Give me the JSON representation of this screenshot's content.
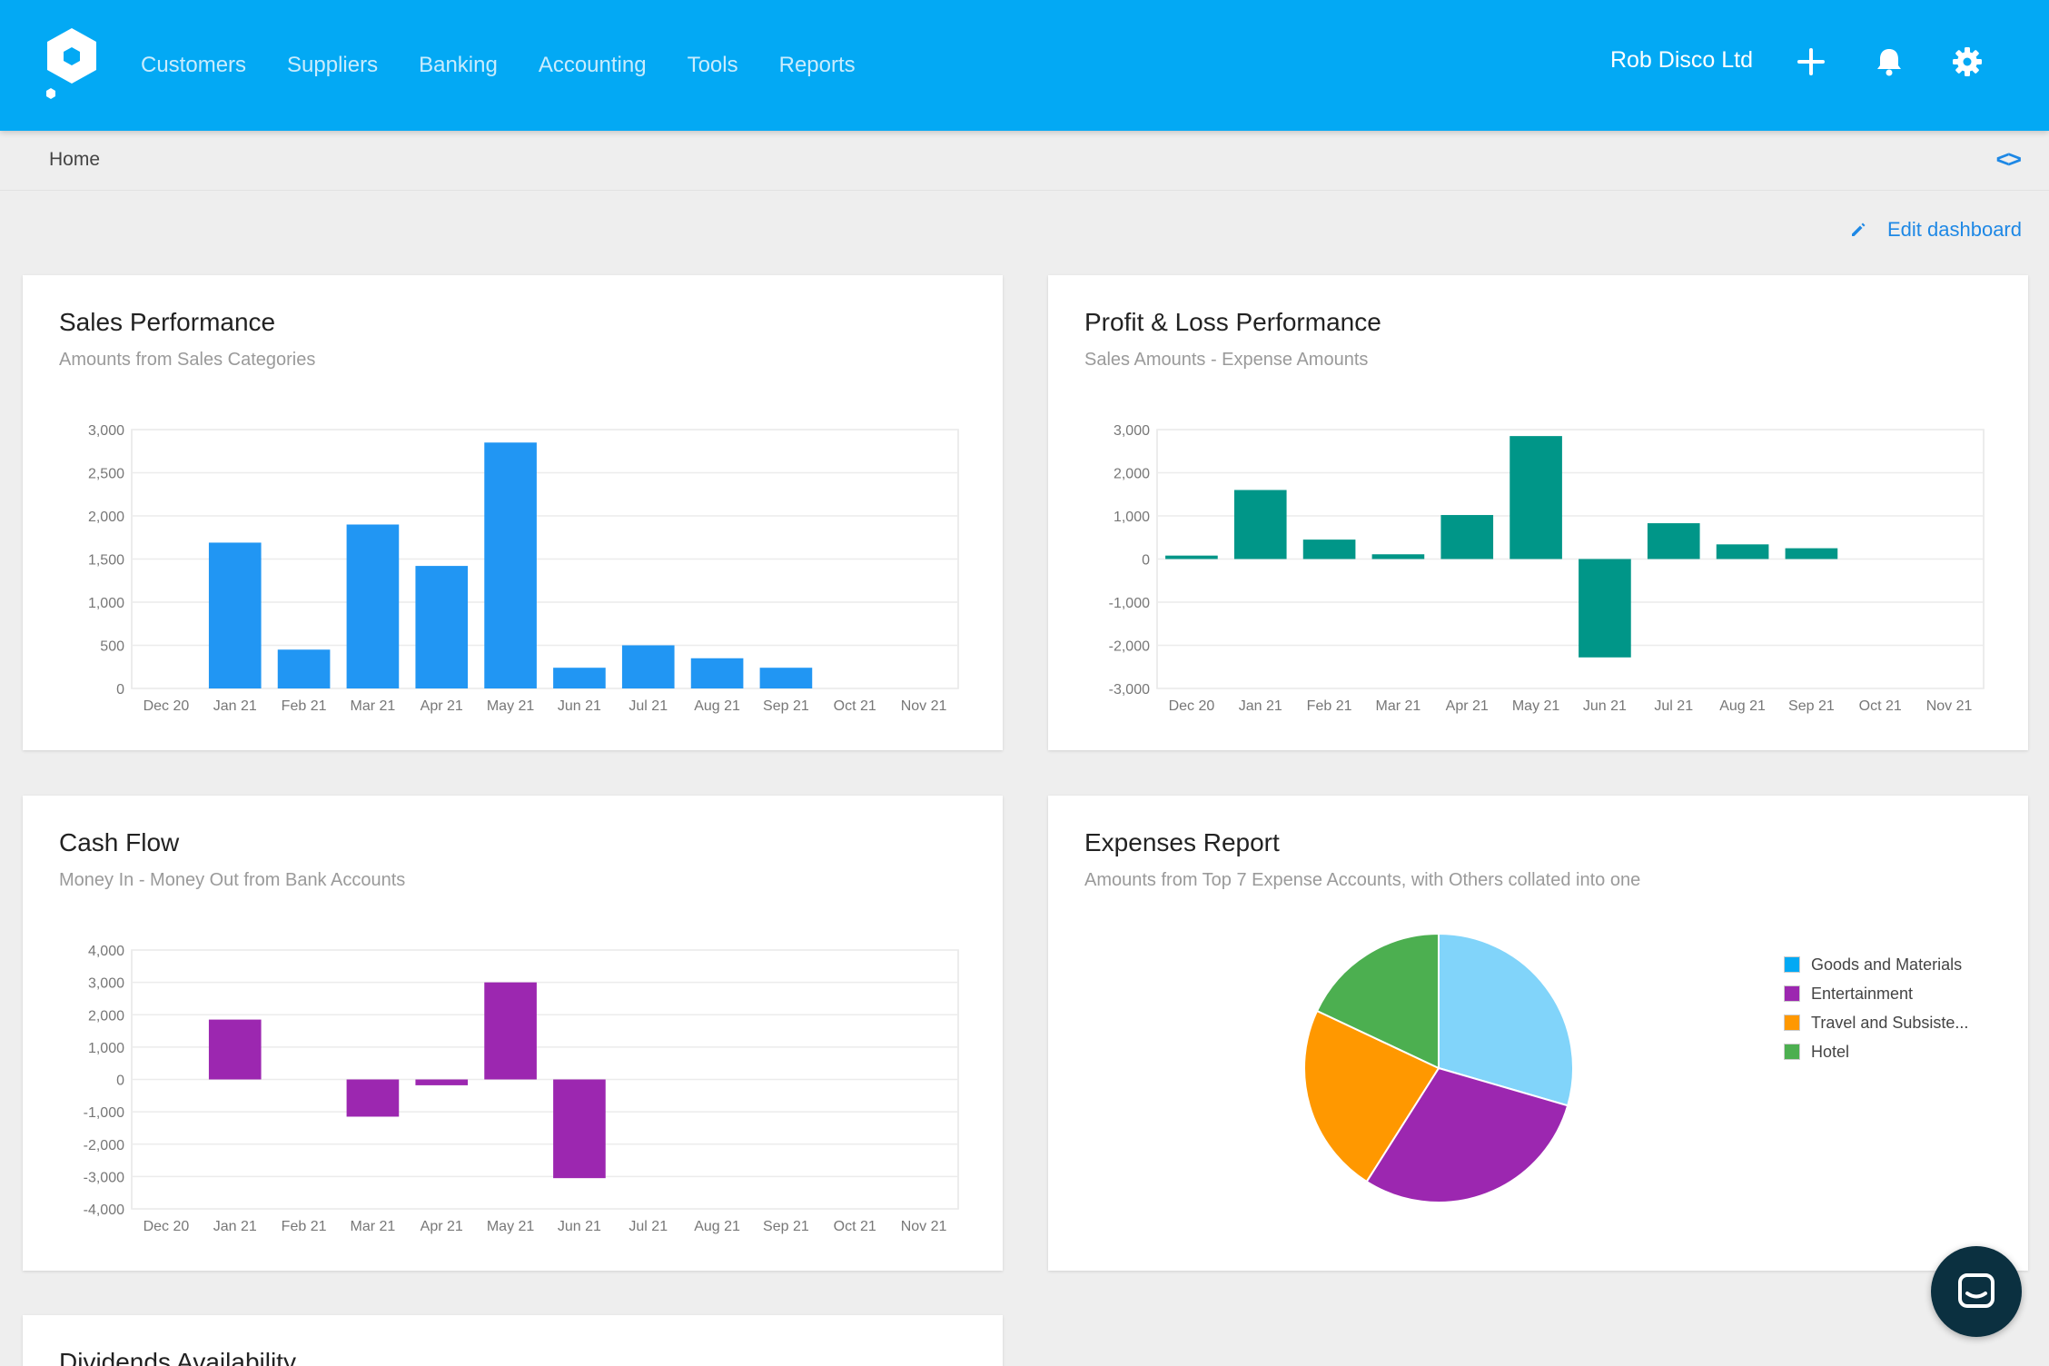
{
  "nav": {
    "items": [
      "Customers",
      "Suppliers",
      "Banking",
      "Accounting",
      "Tools",
      "Reports"
    ],
    "company": "Rob Disco Ltd"
  },
  "breadcrumb": {
    "home": "Home",
    "toggle": "<>"
  },
  "edit_dashboard": "Edit dashboard",
  "colors": {
    "topbar": "#03a9f4",
    "sales": "#2196f3",
    "pl": "#009688",
    "cash": "#9c27b0"
  },
  "cards": {
    "sales": {
      "title": "Sales Performance",
      "subtitle": "Amounts from Sales Categories"
    },
    "pl": {
      "title": "Profit & Loss Performance",
      "subtitle": "Sales Amounts - Expense Amounts"
    },
    "cash": {
      "title": "Cash Flow",
      "subtitle": "Money In - Money Out from Bank Accounts"
    },
    "expenses": {
      "title": "Expenses Report",
      "subtitle": "Amounts from Top 7 Expense Accounts, with Others collated into one"
    },
    "dividends": {
      "title": "Dividends Availability"
    }
  },
  "chart_data": [
    {
      "id": "sales",
      "type": "bar",
      "categories": [
        "Dec 20",
        "Jan 21",
        "Feb 21",
        "Mar 21",
        "Apr 21",
        "May 21",
        "Jun 21",
        "Jul 21",
        "Aug 21",
        "Sep 21",
        "Oct 21",
        "Nov 21"
      ],
      "values": [
        0,
        1690,
        450,
        1900,
        1420,
        2850,
        240,
        500,
        350,
        240,
        0,
        0
      ],
      "ylim": [
        0,
        3000
      ],
      "yticks": [
        "3,000",
        "2,500",
        "2,000",
        "1,500",
        "1,000",
        "500",
        "0"
      ],
      "color": "#2196f3"
    },
    {
      "id": "pl",
      "type": "bar",
      "categories": [
        "Dec 20",
        "Jan 21",
        "Feb 21",
        "Mar 21",
        "Apr 21",
        "May 21",
        "Jun 21",
        "Jul 21",
        "Aug 21",
        "Sep 21",
        "Oct 21",
        "Nov 21"
      ],
      "values": [
        80,
        1600,
        450,
        110,
        1020,
        2850,
        -2280,
        830,
        340,
        250,
        0,
        0
      ],
      "ylim": [
        -3000,
        3000
      ],
      "yticks": [
        "3,000",
        "2,000",
        "1,000",
        "0",
        "-1,000",
        "-2,000",
        "-3,000"
      ],
      "color": "#009688"
    },
    {
      "id": "cash",
      "type": "bar",
      "categories": [
        "Dec 20",
        "Jan 21",
        "Feb 21",
        "Mar 21",
        "Apr 21",
        "May 21",
        "Jun 21",
        "Jul 21",
        "Aug 21",
        "Sep 21",
        "Oct 21",
        "Nov 21"
      ],
      "values": [
        0,
        1850,
        0,
        -1150,
        -180,
        3000,
        -3050,
        0,
        0,
        0,
        0,
        0
      ],
      "ylim": [
        -4000,
        4000
      ],
      "yticks": [
        "4,000",
        "3,000",
        "2,000",
        "1,000",
        "0",
        "-1,000",
        "-2,000",
        "-3,000",
        "-4,000"
      ],
      "color": "#9c27b0"
    },
    {
      "id": "expenses",
      "type": "pie",
      "labels": [
        "Goods and Materials",
        "Entertainment",
        "Travel and Subsiste...",
        "Hotel"
      ],
      "values": [
        29.5,
        29.5,
        23,
        18
      ],
      "colors": [
        "#81d4fa",
        "#9c27b0",
        "#ff9800",
        "#4caf50"
      ]
    }
  ]
}
